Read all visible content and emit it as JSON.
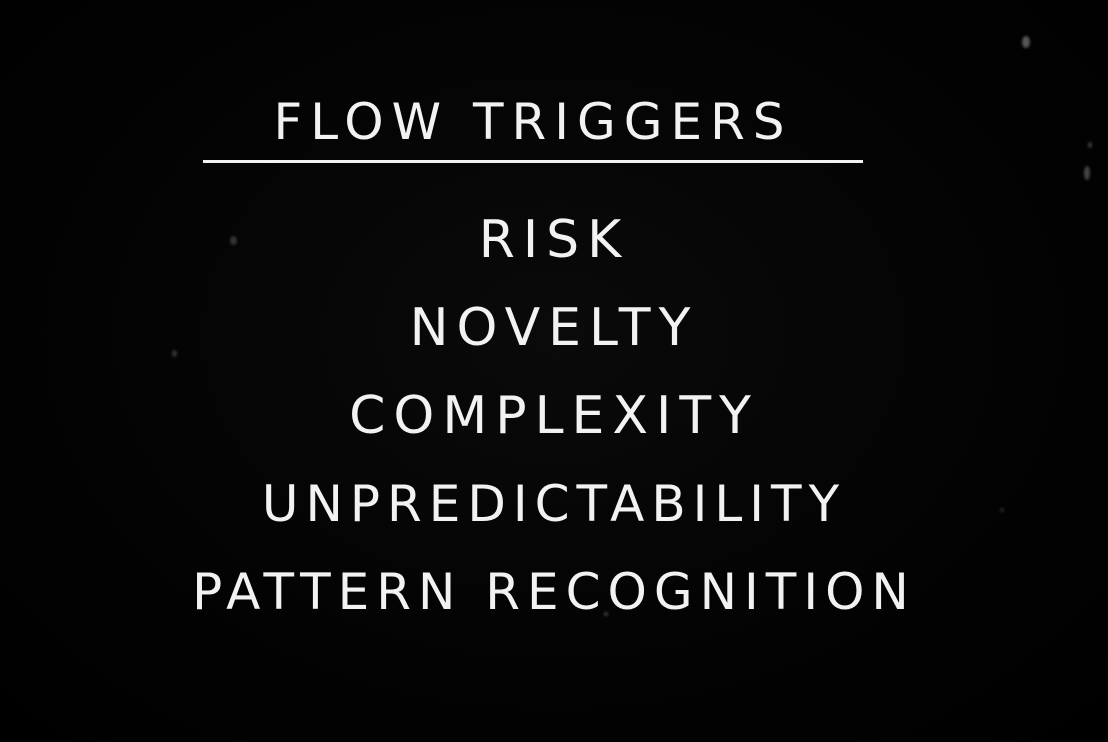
{
  "slide": {
    "title": "FLOW TRIGGERS",
    "items": [
      "RISK",
      "NOVELTY",
      "COMPLEXITY",
      "UNPREDICTABILITY",
      "PATTERN RECOGNITION"
    ]
  },
  "colors": {
    "background": "#000000",
    "text": "#f2f2f2"
  }
}
